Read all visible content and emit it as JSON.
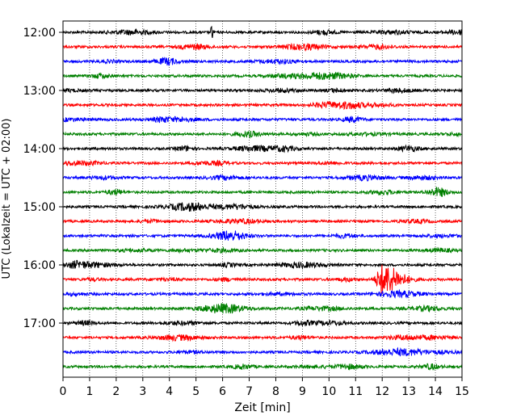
{
  "chart_data": {
    "type": "line",
    "title": "",
    "xlabel": "Zeit  [min]",
    "ylabel": "UTC (Lokalzeit = UTC + 02:00)",
    "xlim": [
      0,
      15
    ],
    "x_ticks": [
      "0",
      "1",
      "2",
      "3",
      "4",
      "5",
      "6",
      "7",
      "8",
      "9",
      "10",
      "11",
      "12",
      "13",
      "14",
      "15"
    ],
    "y_ticks": [
      "12:00",
      "13:00",
      "14:00",
      "15:00",
      "16:00",
      "17:00"
    ],
    "grid": {
      "x": true,
      "y": false,
      "style": "dotted"
    },
    "trace_interval_minutes": 15,
    "trace_colors": [
      "#000000",
      "#ff0000",
      "#0000ff",
      "#008000"
    ],
    "traces": [
      {
        "start": "12:00"
      },
      {
        "start": "12:15"
      },
      {
        "start": "12:30"
      },
      {
        "start": "12:45"
      },
      {
        "start": "13:00"
      },
      {
        "start": "13:15"
      },
      {
        "start": "13:30"
      },
      {
        "start": "13:45"
      },
      {
        "start": "14:00"
      },
      {
        "start": "14:15"
      },
      {
        "start": "14:30"
      },
      {
        "start": "14:45"
      },
      {
        "start": "15:00"
      },
      {
        "start": "15:15"
      },
      {
        "start": "15:30"
      },
      {
        "start": "15:45"
      },
      {
        "start": "16:00"
      },
      {
        "start": "16:15"
      },
      {
        "start": "16:30"
      },
      {
        "start": "16:45"
      },
      {
        "start": "17:00"
      },
      {
        "start": "17:15"
      },
      {
        "start": "17:30"
      },
      {
        "start": "17:45"
      }
    ],
    "events": [
      {
        "trace_start": "12:00",
        "minute": 5.6,
        "description": "spike"
      },
      {
        "trace_start": "16:15",
        "minute": 12.0,
        "description": "seismic event"
      }
    ]
  }
}
